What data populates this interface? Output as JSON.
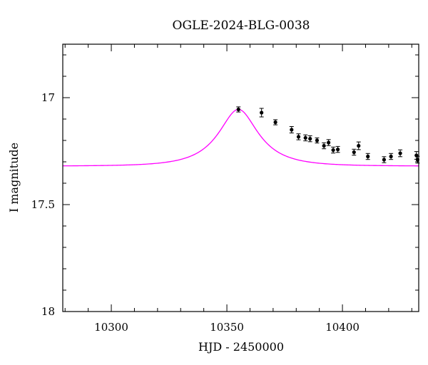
{
  "chart_data": {
    "type": "scatter",
    "title": "OGLE-2024-BLG-0038",
    "xlabel": "HJD - 2450000",
    "ylabel": "I magnitude",
    "xlim": [
      10279,
      10433
    ],
    "ylim": [
      18.0,
      16.75
    ],
    "y_inverted": true,
    "x_ticks": [
      10300,
      10350,
      10400
    ],
    "x_tick_labels": [
      "10300",
      "10350",
      "10400"
    ],
    "y_ticks": [
      17,
      17.5,
      18
    ],
    "y_tick_labels": [
      "17",
      "17.5",
      "18"
    ],
    "x_minor_step": 10,
    "y_minor_step": 0.1,
    "grid": false,
    "legend": "none",
    "colors": {
      "model": "#ff00ff",
      "points": "#000000"
    },
    "model": {
      "type": "line",
      "baseline_mag": 17.32,
      "peak_mag": 17.055,
      "t0": 10355,
      "tE": 18
    },
    "series": [
      {
        "type": "scatter_errorbar",
        "points": [
          {
            "x": 10355,
            "y": 17.055,
            "err": 0.012
          },
          {
            "x": 10365,
            "y": 17.07,
            "err": 0.02
          },
          {
            "x": 10371,
            "y": 17.115,
            "err": 0.012
          },
          {
            "x": 10378,
            "y": 17.15,
            "err": 0.015
          },
          {
            "x": 10381,
            "y": 17.183,
            "err": 0.014
          },
          {
            "x": 10384,
            "y": 17.188,
            "err": 0.014
          },
          {
            "x": 10386,
            "y": 17.192,
            "err": 0.014
          },
          {
            "x": 10389,
            "y": 17.2,
            "err": 0.012
          },
          {
            "x": 10392,
            "y": 17.225,
            "err": 0.014
          },
          {
            "x": 10394,
            "y": 17.21,
            "err": 0.014
          },
          {
            "x": 10396,
            "y": 17.245,
            "err": 0.014
          },
          {
            "x": 10398,
            "y": 17.242,
            "err": 0.014
          },
          {
            "x": 10405,
            "y": 17.255,
            "err": 0.014
          },
          {
            "x": 10407,
            "y": 17.225,
            "err": 0.018
          },
          {
            "x": 10411,
            "y": 17.275,
            "err": 0.014
          },
          {
            "x": 10418,
            "y": 17.29,
            "err": 0.014
          },
          {
            "x": 10421,
            "y": 17.275,
            "err": 0.014
          },
          {
            "x": 10425,
            "y": 17.26,
            "err": 0.016
          },
          {
            "x": 10432,
            "y": 17.27,
            "err": 0.018
          },
          {
            "x": 10432.5,
            "y": 17.29,
            "err": 0.016
          }
        ]
      }
    ]
  }
}
